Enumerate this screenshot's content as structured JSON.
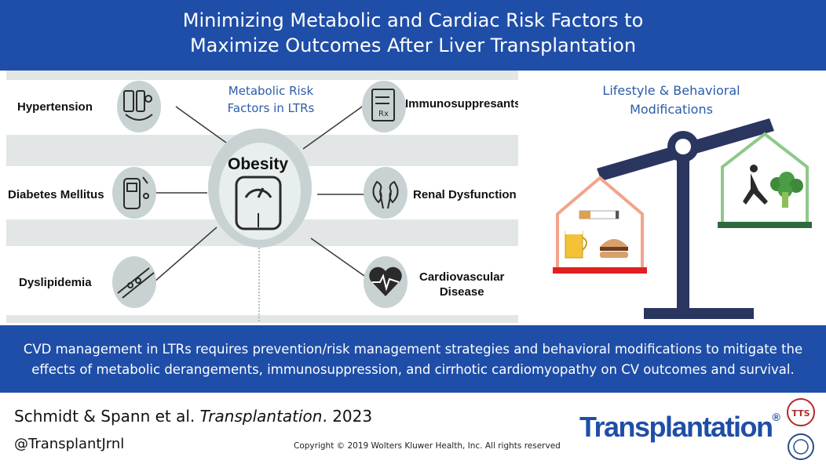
{
  "header": {
    "line1": "Minimizing Metabolic and Cardiac Risk Factors to",
    "line2": "Maximize Outcomes After Liver Transplantation"
  },
  "center": {
    "title_line1": "Metabolic Risk",
    "title_line2": "Factors in LTRs",
    "label": "Obesity"
  },
  "risk_factors_left": [
    {
      "label": "Hypertension",
      "icon": "blood-pressure-icon"
    },
    {
      "label": "Diabetes Mellitus",
      "icon": "glucometer-icon"
    },
    {
      "label": "Dyslipidemia",
      "icon": "artery-plaque-icon"
    }
  ],
  "risk_factors_right": [
    {
      "label": "Immunosuppresants",
      "icon": "prescription-icon"
    },
    {
      "label": "Renal Dysfunction",
      "icon": "kidneys-icon"
    },
    {
      "label_line1": "Cardiovascular",
      "label_line2": "Disease",
      "icon": "heart-ecg-icon"
    }
  ],
  "lifestyle": {
    "title_line1": "Lifestyle & Behavioral",
    "title_line2": "Modifications",
    "left_pan_icons": [
      "cigarette-icon",
      "beer-icon",
      "burger-icon"
    ],
    "right_pan_icons": [
      "runner-icon",
      "broccoli-icon"
    ],
    "left_house_color": "#f2a48a",
    "right_house_color": "#8ec98a"
  },
  "banner": {
    "line1": "CVD management  in LTRs requires prevention/risk  management strategies and behavioral modifications to mitigate the",
    "line2": "effects of metabolic derangements, immunosuppression, and cirrhotic cardiomyopathy on CV outcomes and survival."
  },
  "footer": {
    "authors": "Schmidt & Spann et al. ",
    "journal": "Transplantation",
    "year": ". 2023",
    "handle": "@TransplantJrnl",
    "copyright": "Copyright © 2019  Wolters Kluwer Health, Inc. All rights reserved",
    "brand": "Transplantation",
    "brand_mark": "®",
    "seal_text": "TTS"
  },
  "colors": {
    "brand_blue": "#1f4ea8",
    "scale_navy": "#2a3560",
    "circle_gray": "#c8d2d2"
  }
}
